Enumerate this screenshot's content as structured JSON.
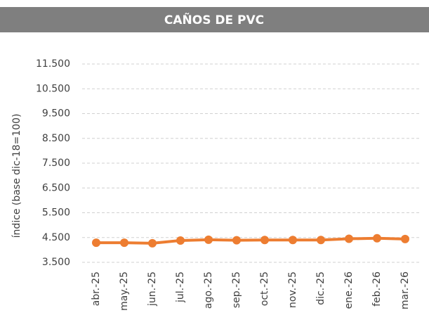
{
  "chart_data": {
    "type": "line",
    "title": "CAÑOS DE PVC",
    "y_label": "índice (base dic-18=100)",
    "categories": [
      "abr.-25",
      "may.-25",
      "jun.-25",
      "jul.-25",
      "ago.-25",
      "sep.-25",
      "oct.-25",
      "nov.-25",
      "dic.-25",
      "ene.-26",
      "feb.-26",
      "mar.-26"
    ],
    "values": [
      4290,
      4290,
      4270,
      4380,
      4410,
      4390,
      4400,
      4400,
      4400,
      4450,
      4470,
      4440
    ],
    "color": "#ed7d31",
    "ylim": [
      3500,
      11500
    ],
    "yticks": [
      {
        "value": 3500,
        "label": "3.500"
      },
      {
        "value": 4500,
        "label": "4.500"
      },
      {
        "value": 5500,
        "label": "5.500"
      },
      {
        "value": 6500,
        "label": "6.500"
      },
      {
        "value": 7500,
        "label": "7.500"
      },
      {
        "value": 8500,
        "label": "8.500"
      },
      {
        "value": 9500,
        "label": "9.500"
      },
      {
        "value": 10500,
        "label": "10.500"
      },
      {
        "value": 11500,
        "label": "11.500"
      }
    ],
    "grid": true
  }
}
